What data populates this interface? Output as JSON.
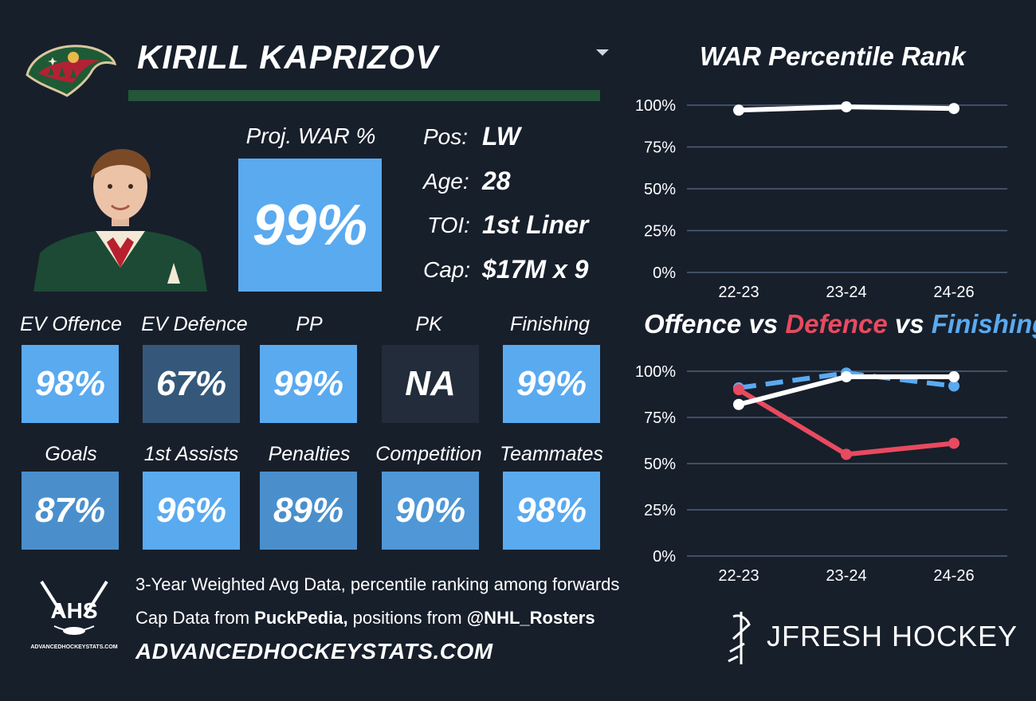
{
  "header": {
    "player_name": "KIRILL KAPRIZOV",
    "team_logo_icon": "minnesota-wild-logo"
  },
  "projection": {
    "label": "Proj. WAR %",
    "value": "99%"
  },
  "info": {
    "pos_label": "Pos:",
    "pos_value": "LW",
    "age_label": "Age:",
    "age_value": "28",
    "toi_label": "TOI:",
    "toi_value": "1st Liner",
    "cap_label": "Cap:",
    "cap_value": "$17M x 9"
  },
  "tiles_row1": [
    {
      "label": "EV Offence",
      "value": "98%",
      "color": "#5aaaf0"
    },
    {
      "label": "EV Defence",
      "value": "67%",
      "color": "#35587a"
    },
    {
      "label": "PP",
      "value": "99%",
      "color": "#5aaaf0"
    },
    {
      "label": "PK",
      "value": "NA",
      "color": "#222c3a"
    },
    {
      "label": "Finishing",
      "value": "99%",
      "color": "#5aaaf0"
    }
  ],
  "tiles_row2": [
    {
      "label": "Goals",
      "value": "87%",
      "color": "#4a8fcc"
    },
    {
      "label": "1st Assists",
      "value": "96%",
      "color": "#5aaaf0"
    },
    {
      "label": "Penalties",
      "value": "89%",
      "color": "#4a8fcc"
    },
    {
      "label": "Competition",
      "value": "90%",
      "color": "#4f97d6"
    },
    {
      "label": "Teammates",
      "value": "98%",
      "color": "#5aaaf0"
    }
  ],
  "footer": {
    "line1": "3-Year Weighted Avg Data, percentile ranking among forwards",
    "line2_prefix": "Cap Data from ",
    "line2_bold1": "PuckPedia,",
    "line2_mid": " positions from ",
    "line2_bold2": "@NHL_Rosters",
    "url": "ADVANCEDHOCKEYSTATS.COM",
    "ahs_logo_text": "AHS",
    "ahs_logo_sub": "ADVANCEDHOCKEYSTATS.COM",
    "brand": "JFRESH HOCKEY"
  },
  "colors": {
    "background": "#171f2b",
    "offence": "#ffffff",
    "defence": "#e84a5f",
    "finishing": "#5aaaf0"
  },
  "chart_data": [
    {
      "type": "line",
      "title": "WAR Percentile Rank",
      "categories": [
        "22-23",
        "23-24",
        "24-26"
      ],
      "yticks": [
        "100%",
        "75%",
        "50%",
        "25%",
        "0%"
      ],
      "ylim": [
        0,
        100
      ],
      "grid": true,
      "series": [
        {
          "values": [
            97,
            99,
            98
          ],
          "color": "#ffffff",
          "dashed": false
        }
      ]
    },
    {
      "type": "line",
      "title_parts": [
        {
          "text": "Offence",
          "color": "#ffffff"
        },
        {
          "text": " vs ",
          "color": "#ffffff"
        },
        {
          "text": "Defence",
          "color": "#e84a5f"
        },
        {
          "text": " vs ",
          "color": "#ffffff"
        },
        {
          "text": "Finishing",
          "color": "#5aaaf0"
        }
      ],
      "categories": [
        "22-23",
        "23-24",
        "24-26"
      ],
      "yticks": [
        "100%",
        "75%",
        "50%",
        "25%",
        "0%"
      ],
      "ylim": [
        0,
        100
      ],
      "grid": true,
      "series": [
        {
          "name": "Finishing",
          "values": [
            91,
            99,
            92
          ],
          "color": "#5aaaf0",
          "dashed": true
        },
        {
          "name": "Defence",
          "values": [
            90,
            55,
            61
          ],
          "color": "#e84a5f",
          "dashed": false
        },
        {
          "name": "Offence",
          "values": [
            82,
            97,
            97
          ],
          "color": "#ffffff",
          "dashed": false
        }
      ]
    }
  ]
}
